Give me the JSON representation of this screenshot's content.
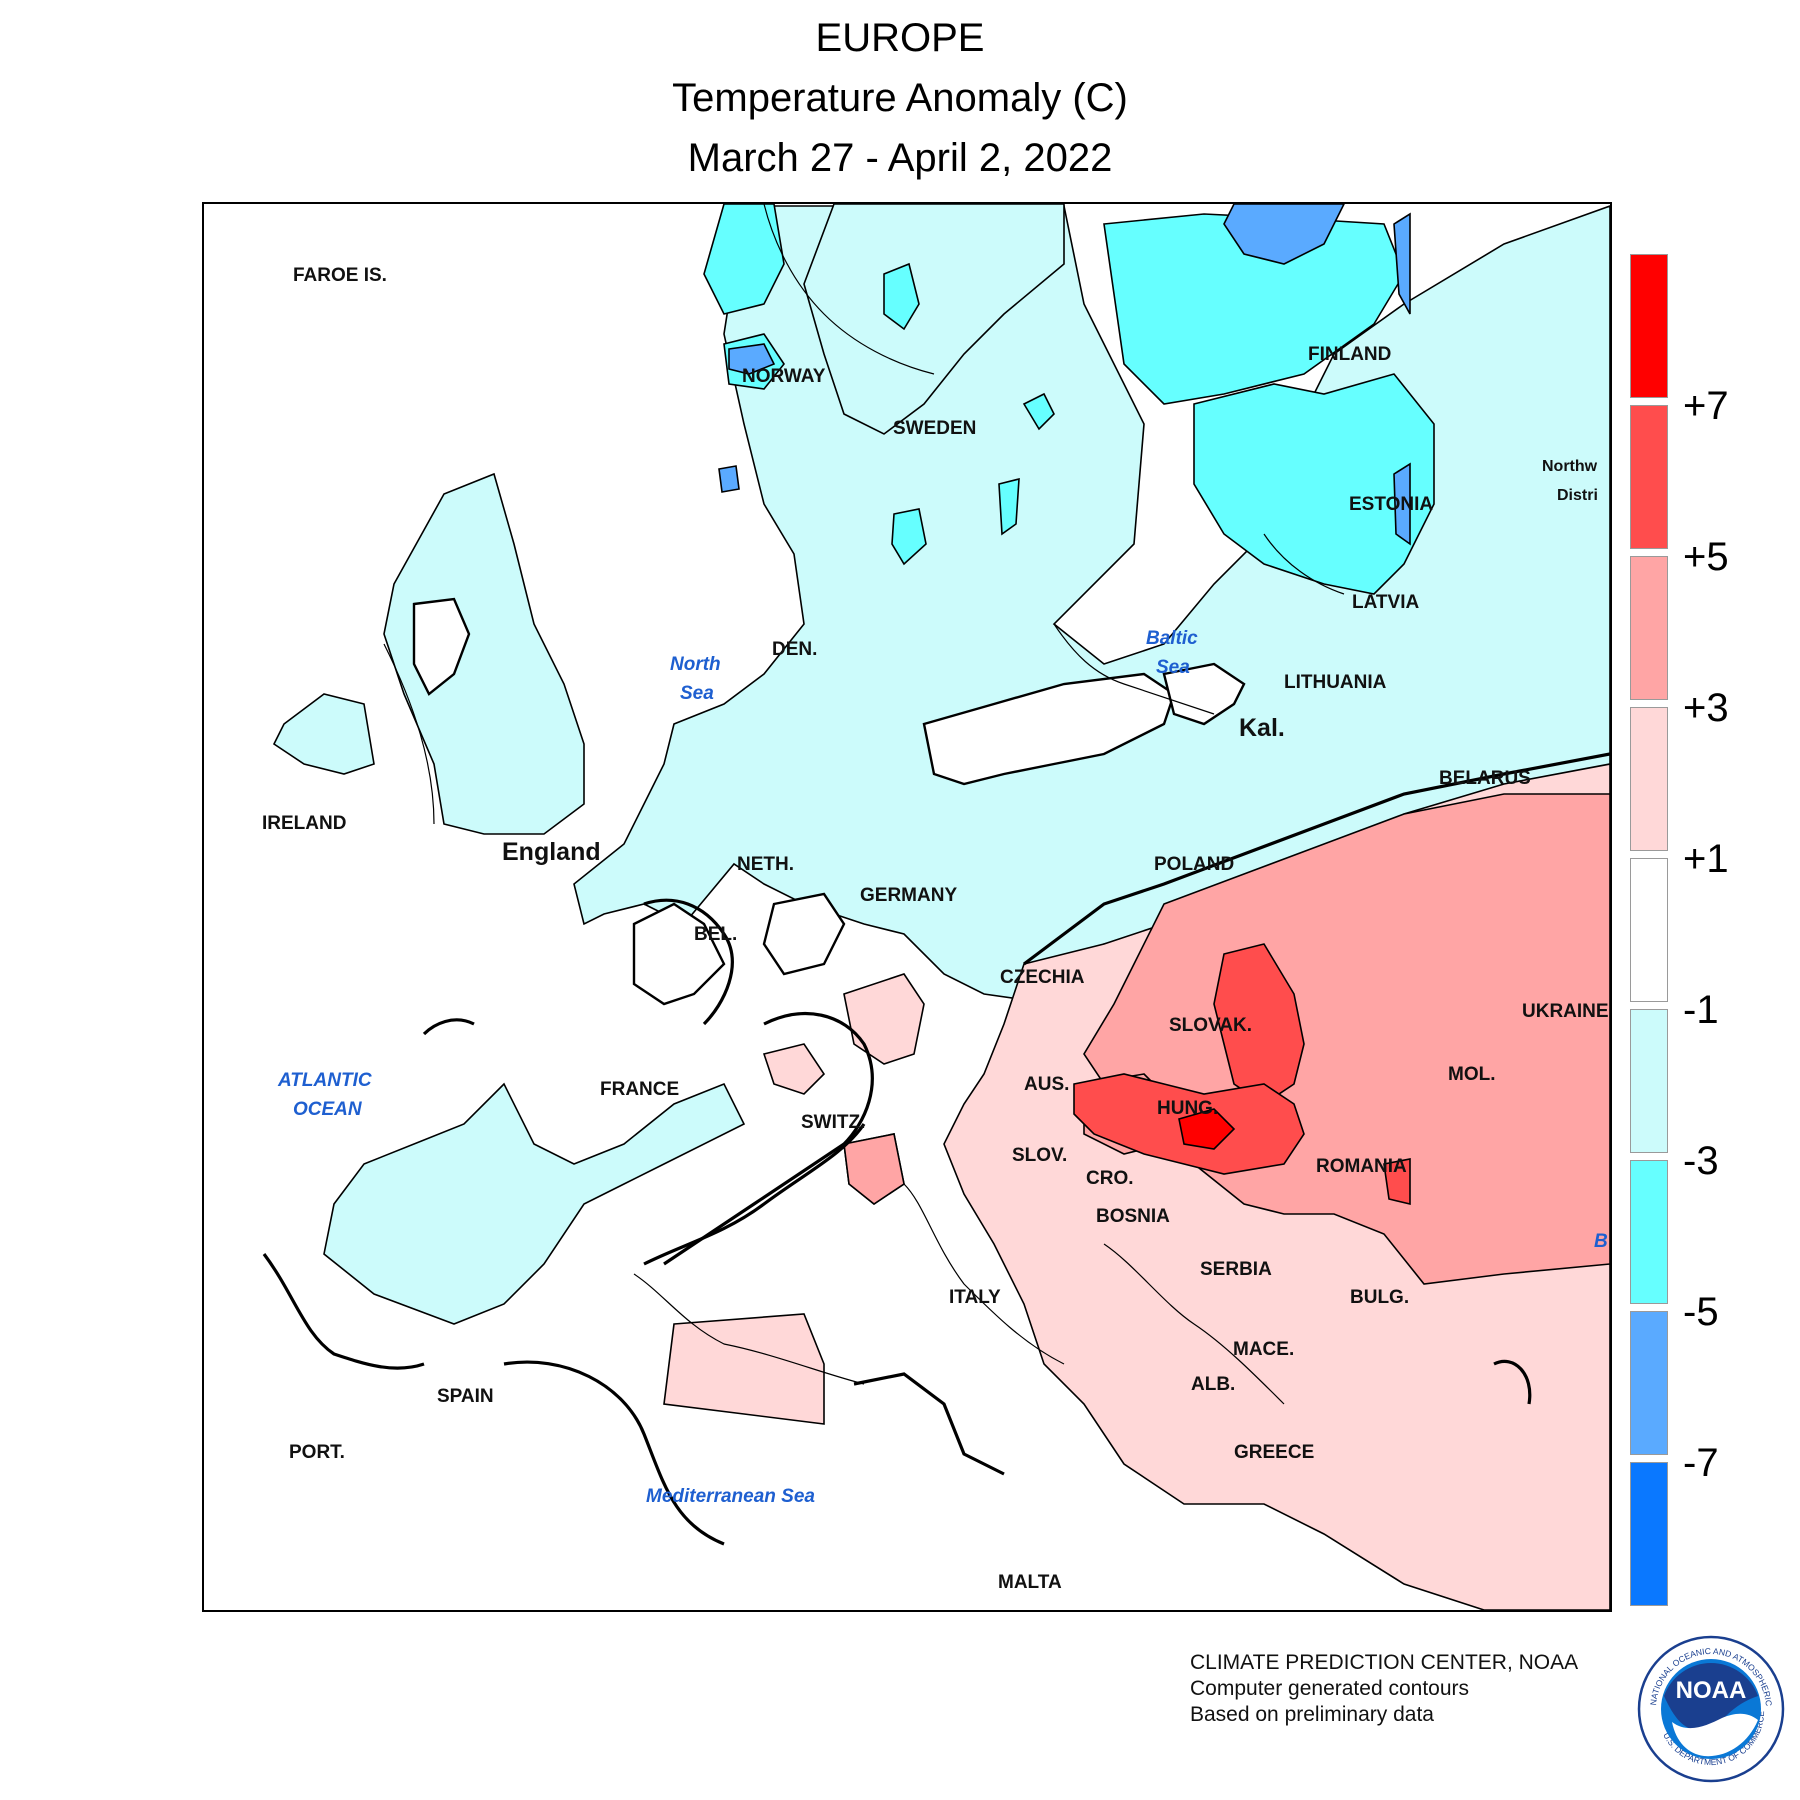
{
  "header": {
    "region": "EUROPE",
    "variable": "Temperature Anomaly (C)",
    "period": "March 27 - April 2, 2022"
  },
  "legend": {
    "bins": [
      {
        "color": "#ff0000"
      },
      {
        "color": "#ff4d4d"
      },
      {
        "color": "#ffa5a5"
      },
      {
        "color": "#ffd8d8"
      },
      {
        "color": "#ffffff"
      },
      {
        "color": "#ccfbfb"
      },
      {
        "color": "#66ffff"
      },
      {
        "color": "#5aaaff"
      },
      {
        "color": "#0a78ff"
      }
    ],
    "ticks": [
      "+7",
      "+5",
      "+3",
      "+1",
      "-1",
      "-3",
      "-5",
      "-7"
    ]
  },
  "map": {
    "country_labels": {
      "faroe": "FAROE IS.",
      "norway": "NORWAY",
      "sweden": "SWEDEN",
      "finland": "FINLAND",
      "estonia": "ESTONIA",
      "latvia": "LATVIA",
      "lithuania": "LITHUANIA",
      "kaliningrad": "Kal.",
      "belarus": "BELARUS",
      "denmark": "DEN.",
      "ireland": "IRELAND",
      "england": "England",
      "netherlands": "NETH.",
      "germany": "GERMANY",
      "poland": "POLAND",
      "belgium": "BEL.",
      "czechia": "CZECHIA",
      "slovakia": "SLOVAK.",
      "ukraine": "UKRAINE",
      "moldova": "MOL.",
      "austria": "AUS.",
      "hungary": "HUNG.",
      "france": "FRANCE",
      "switzerland": "SWITZ.",
      "slovenia": "SLOV.",
      "croatia": "CRO.",
      "romania": "ROMANIA",
      "bosnia": "BOSNIA",
      "serbia": "SERBIA",
      "bulgaria": "BULG.",
      "italy": "ITALY",
      "macedonia": "MACE.",
      "albania": "ALB.",
      "spain": "SPAIN",
      "portugal": "PORT.",
      "greece": "GREECE",
      "malta": "MALTA",
      "northwest_1": "Northw",
      "northwest_2": "Distri"
    },
    "sea_labels": {
      "north_sea_1": "North",
      "north_sea_2": "Sea",
      "baltic_1": "Baltic",
      "baltic_2": "Sea",
      "atlantic_1": "ATLANTIC",
      "atlantic_2": "OCEAN",
      "mediterranean": "Mediterranean Sea",
      "black_sea_fragment": "B"
    }
  },
  "credits": {
    "line1": "CLIMATE PREDICTION CENTER, NOAA",
    "line2": "Computer generated contours",
    "line3": "Based on preliminary data"
  },
  "logo": {
    "text": "NOAA",
    "ring_top": "NATIONAL OCEANIC AND ATMOSPHERIC ADMINISTRATION",
    "ring_bottom": "U.S. DEPARTMENT OF COMMERCE"
  }
}
